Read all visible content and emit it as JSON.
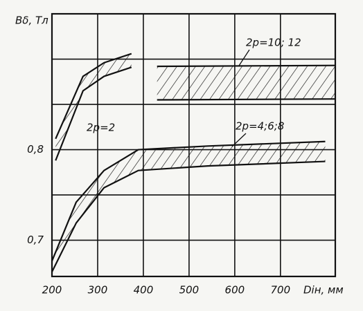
{
  "chart_data": {
    "type": "band",
    "ylabel": "Bδ, Тл",
    "xlabel": "Dін, мм",
    "xlim": [
      200,
      820
    ],
    "ylim": [
      0.66,
      0.95
    ],
    "xticks": [
      200,
      300,
      400,
      500,
      600,
      700
    ],
    "yticks": [
      {
        "value": 0.7,
        "label": "0,7"
      },
      {
        "value": 0.8,
        "label": "0,8"
      }
    ],
    "ygrid": [
      0.7,
      0.75,
      0.8,
      0.85,
      0.9
    ],
    "grid": true,
    "color": "#111111",
    "series": [
      {
        "name": "2p=2",
        "x": [
          208,
          268,
          314,
          374
        ],
        "upper": [
          0.812,
          0.881,
          0.896,
          0.906
        ],
        "lower": [
          0.788,
          0.865,
          0.881,
          0.891
        ]
      },
      {
        "name": "2p=10; 12",
        "x": [
          430,
          820
        ],
        "upper": [
          0.892,
          0.893
        ],
        "lower": [
          0.855,
          0.856
        ]
      },
      {
        "name": "2p=4;6;8",
        "x": [
          200,
          253,
          314,
          389,
          541,
          798
        ],
        "upper": [
          0.677,
          0.742,
          0.777,
          0.8,
          0.804,
          0.809
        ],
        "lower": [
          0.665,
          0.719,
          0.758,
          0.777,
          0.782,
          0.787
        ]
      }
    ]
  }
}
